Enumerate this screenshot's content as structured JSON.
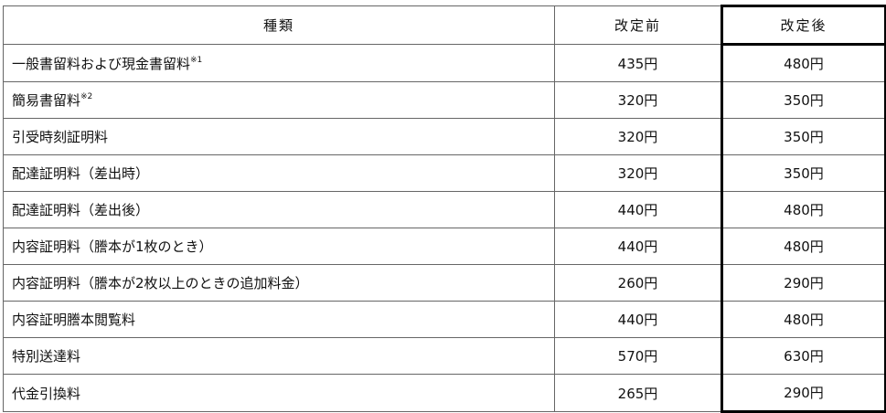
{
  "headers": {
    "type": "種類",
    "before": "改定前",
    "after": "改定後"
  },
  "rows": [
    {
      "name": "一般書留料および現金書留料",
      "note": "※1",
      "before": "435円",
      "after": "480円"
    },
    {
      "name": "簡易書留料",
      "note": "※2",
      "before": "320円",
      "after": "350円"
    },
    {
      "name": "引受時刻証明料",
      "note": "",
      "before": "320円",
      "after": "350円"
    },
    {
      "name": "配達証明料（差出時）",
      "note": "",
      "before": "320円",
      "after": "350円"
    },
    {
      "name": "配達証明料（差出後）",
      "note": "",
      "before": "440円",
      "after": "480円"
    },
    {
      "name": "内容証明料（謄本が1枚のとき）",
      "note": "",
      "before": "440円",
      "after": "480円"
    },
    {
      "name": "内容証明料（謄本が2枚以上のときの追加料金）",
      "note": "",
      "before": "260円",
      "after": "290円"
    },
    {
      "name": "内容証明謄本閲覧料",
      "note": "",
      "before": "440円",
      "after": "480円"
    },
    {
      "name": "特別送達料",
      "note": "",
      "before": "570円",
      "after": "630円"
    },
    {
      "name": "代金引換料",
      "note": "",
      "before": "265円",
      "after": "290円"
    }
  ]
}
